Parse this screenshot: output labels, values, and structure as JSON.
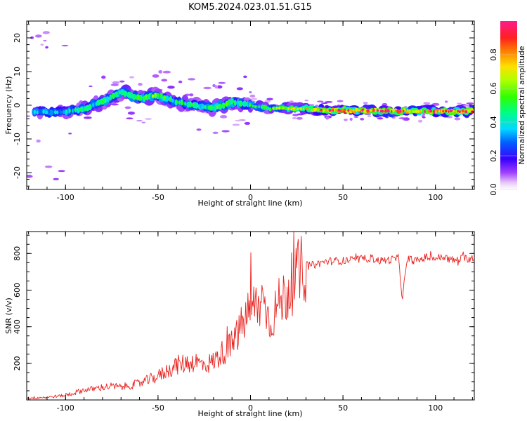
{
  "title": "KOM5.2024.023.01.51.G15",
  "colors": {
    "snr_line": "#e8231f",
    "axis": "#000000",
    "colormap": [
      "#ffffff",
      "#d9b3f5",
      "#9b30ff",
      "#3a00ff",
      "#0060ff",
      "#00d9ff",
      "#00ff80",
      "#30ff00",
      "#b0ff00",
      "#ffe000",
      "#ff8000",
      "#ff2020",
      "#ff0050",
      "#ff1a8c"
    ]
  },
  "chart_data": [
    {
      "type": "heatmap",
      "xlabel": "Height of straight line (km)",
      "ylabel": "Frequency (Hz)",
      "xlim": [
        -121,
        121
      ],
      "ylim": [
        -25,
        25
      ],
      "xticks": [
        -100,
        -50,
        0,
        50,
        100
      ],
      "yticks": [
        -20,
        -10,
        0,
        10,
        20
      ],
      "colorbar": {
        "label": "Normalized spectral amplitude",
        "range": [
          0,
          1
        ],
        "ticks": [
          "0.0",
          "0.2",
          "0.4",
          "0.6",
          "0.8"
        ]
      },
      "ridge": {
        "x": [
          -110,
          -100,
          -90,
          -80,
          -70,
          -60,
          -50,
          -40,
          -30,
          -20,
          -10,
          0,
          10,
          20,
          30,
          40,
          50,
          60,
          70,
          80,
          90,
          100,
          110,
          120
        ],
        "freq_hz": [
          -2,
          -2,
          -1,
          1,
          4,
          2,
          3,
          1,
          0,
          -1,
          1,
          0,
          -1,
          -1,
          -1,
          -1.5,
          -1.5,
          -1.5,
          -1.7,
          -1.7,
          -1.8,
          -1.8,
          -1.8,
          -1.8
        ],
        "peak_amplitude": [
          0.35,
          0.4,
          0.45,
          0.5,
          0.55,
          0.5,
          0.55,
          0.45,
          0.45,
          0.5,
          0.55,
          0.5,
          0.55,
          0.6,
          0.7,
          0.85,
          0.9,
          0.9,
          0.9,
          0.9,
          0.85,
          0.85,
          0.9,
          0.9
        ]
      }
    },
    {
      "type": "line",
      "xlabel": "Height of straight line (km)",
      "ylabel": "SNR (v/v)",
      "xlim": [
        -121,
        121
      ],
      "ylim": [
        0,
        920
      ],
      "xticks": [
        -100,
        -50,
        0,
        50,
        100
      ],
      "yticks": [
        200,
        400,
        600,
        800
      ],
      "series": [
        {
          "x": [
            -121,
            -110,
            -100,
            -95,
            -90,
            -85,
            -80,
            -75,
            -70,
            -65,
            -60,
            -55,
            -50,
            -45,
            -40,
            -35,
            -30,
            -25,
            -20,
            -15,
            -10,
            -5,
            0,
            5,
            8,
            10,
            15,
            20,
            25,
            30,
            35,
            40,
            45,
            50,
            55,
            60,
            65,
            70,
            75,
            80,
            82,
            85,
            90,
            95,
            100,
            105,
            110,
            115,
            121
          ],
          "y": [
            10,
            15,
            25,
            40,
            55,
            60,
            70,
            75,
            70,
            80,
            90,
            110,
            130,
            160,
            190,
            200,
            210,
            190,
            210,
            260,
            300,
            400,
            500,
            520,
            560,
            420,
            520,
            590,
            680,
            730,
            740,
            755,
            760,
            760,
            765,
            770,
            775,
            760,
            765,
            775,
            560,
            770,
            760,
            780,
            775,
            780,
            760,
            775,
            770
          ]
        }
      ]
    }
  ]
}
